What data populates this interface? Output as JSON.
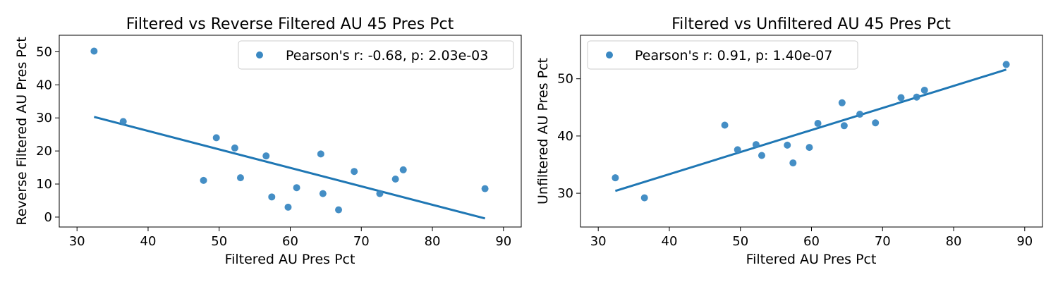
{
  "colors": {
    "points": "#3a88c2",
    "fit_line": "#1f77b4",
    "axes": "#000000",
    "legend_border": "#cccccc"
  },
  "chart_data": [
    {
      "type": "scatter",
      "title": "Filtered vs Reverse Filtered AU 45 Pres Pct",
      "xlabel": "Filtered AU Pres Pct",
      "ylabel": "Reverse Filtered AU Pres Pct",
      "xlim": [
        27.5,
        92.5
      ],
      "ylim": [
        -3,
        55
      ],
      "xticks": [
        30,
        40,
        50,
        60,
        70,
        80,
        90
      ],
      "yticks": [
        0,
        10,
        20,
        30,
        40,
        50
      ],
      "legend_label": "Pearson's r: -0.68, p: 2.03e-03",
      "legend_position": "top-right",
      "grid": false,
      "x": [
        32.4,
        36.5,
        47.8,
        49.6,
        52.2,
        53.0,
        56.6,
        57.4,
        59.7,
        60.9,
        64.3,
        64.6,
        66.8,
        69.0,
        72.6,
        74.8,
        75.9,
        87.4
      ],
      "y": [
        50.2,
        28.9,
        11.1,
        24.0,
        20.9,
        11.9,
        18.5,
        6.1,
        3.0,
        8.9,
        19.1,
        7.1,
        2.2,
        13.8,
        7.1,
        11.5,
        14.3,
        8.6
      ],
      "fit_line": {
        "x": [
          32.4,
          87.4
        ],
        "y": [
          30.3,
          -0.4
        ]
      }
    },
    {
      "type": "scatter",
      "title": "Filtered vs Unfiltered AU 45 Pres Pct",
      "xlabel": "Filtered AU Pres Pct",
      "ylabel": "Unfiltered AU Pres Pct",
      "xlim": [
        27.5,
        92.5
      ],
      "ylim": [
        24.1,
        57.6
      ],
      "xticks": [
        30,
        40,
        50,
        60,
        70,
        80,
        90
      ],
      "yticks": [
        30,
        40,
        50
      ],
      "legend_label": "Pearson's r: 0.91, p: 1.40e-07",
      "legend_position": "top-left",
      "grid": false,
      "x": [
        32.4,
        36.5,
        47.8,
        49.6,
        52.2,
        53.0,
        56.6,
        57.4,
        59.7,
        60.9,
        64.3,
        64.6,
        66.8,
        69.0,
        72.6,
        74.8,
        75.9,
        87.4
      ],
      "y": [
        32.7,
        29.2,
        41.9,
        37.6,
        38.5,
        36.6,
        38.4,
        35.3,
        38.0,
        42.2,
        45.8,
        41.8,
        43.8,
        42.3,
        46.7,
        46.8,
        48.0,
        52.5
      ],
      "fit_line": {
        "x": [
          32.4,
          87.4
        ],
        "y": [
          30.4,
          51.6
        ]
      }
    }
  ]
}
